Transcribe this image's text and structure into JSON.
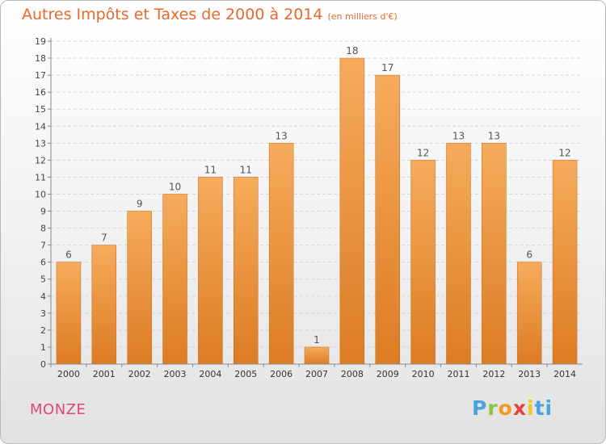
{
  "chart_data": {
    "type": "bar",
    "title": "Autres Impôts et Taxes de 2000 à 2014",
    "unit_label": "(en milliers d'€)",
    "categories": [
      "2000",
      "2001",
      "2002",
      "2003",
      "2004",
      "2005",
      "2006",
      "2007",
      "2008",
      "2009",
      "2010",
      "2011",
      "2012",
      "2013",
      "2014"
    ],
    "values": [
      6,
      7,
      9,
      10,
      11,
      11,
      13,
      1,
      18,
      17,
      12,
      13,
      13,
      6,
      12
    ],
    "ylim": [
      0,
      19
    ],
    "yticks": [
      0,
      1,
      2,
      3,
      4,
      5,
      6,
      7,
      8,
      9,
      10,
      11,
      12,
      13,
      14,
      15,
      16,
      17,
      18,
      19
    ],
    "grid": true,
    "bar_color": "#f2a14c",
    "bar_color_dark": "#db7a22"
  },
  "place_name": "MONZE",
  "logo": {
    "letters": [
      "P",
      "r",
      "o",
      "x",
      "i",
      "ti"
    ],
    "colors": [
      "#4aa3df",
      "#8cc63e",
      "#f39a1e",
      "#e8413b",
      "#f7c51e",
      "#4aa3df"
    ]
  }
}
